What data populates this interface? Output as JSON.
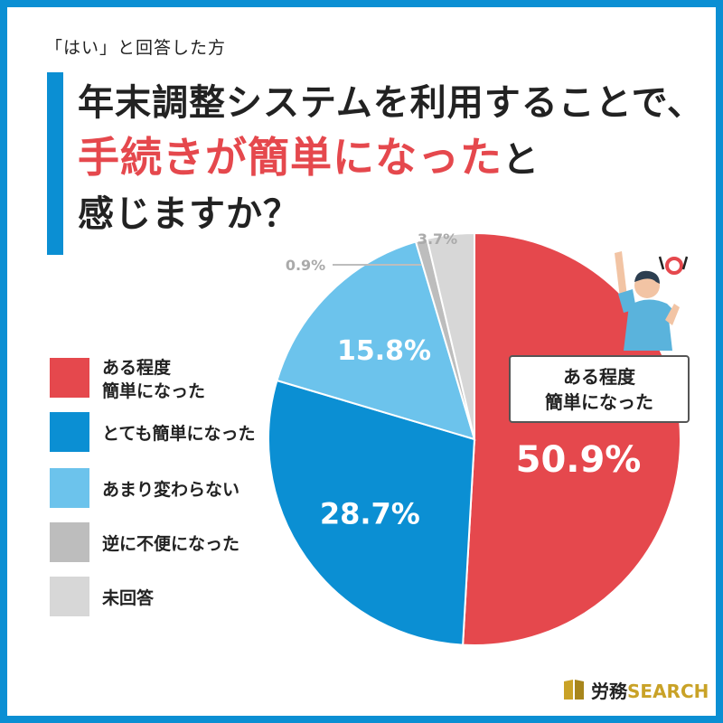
{
  "subtitle": "「はい」と回答した方",
  "title": {
    "line1": "年末調整システムを利用することで、",
    "line2_highlight": "手続きが簡単になった",
    "line2_rest": "と",
    "line3": "感じますか？"
  },
  "colors": {
    "frame": "#0b8fd3",
    "highlight": "#e5484d"
  },
  "chart_data": {
    "type": "pie",
    "start": "12 o'clock, clockwise",
    "slices": [
      {
        "label": "ある程度\n簡単になった",
        "value": 50.9,
        "display": "50.9%",
        "color": "#e5484d"
      },
      {
        "label": "とても簡単になった",
        "value": 28.7,
        "display": "28.7%",
        "color": "#0b8fd3"
      },
      {
        "label": "あまり変わらない",
        "value": 15.8,
        "display": "15.8%",
        "color": "#6cc3ec"
      },
      {
        "label": "逆に不便になった",
        "value": 0.9,
        "display": "0.9%",
        "color": "#bdbdbd"
      },
      {
        "label": "未回答",
        "value": 3.7,
        "display": "3.7%",
        "color": "#d7d7d7"
      }
    ],
    "legend_placement": "left"
  },
  "callout": {
    "text": "ある程度\n簡単になった"
  },
  "logo": {
    "text_main": "労務",
    "text_accent": "SEARCH"
  },
  "illustration": {
    "icon": "person-raising-arm-with-circle-mark-icon"
  }
}
